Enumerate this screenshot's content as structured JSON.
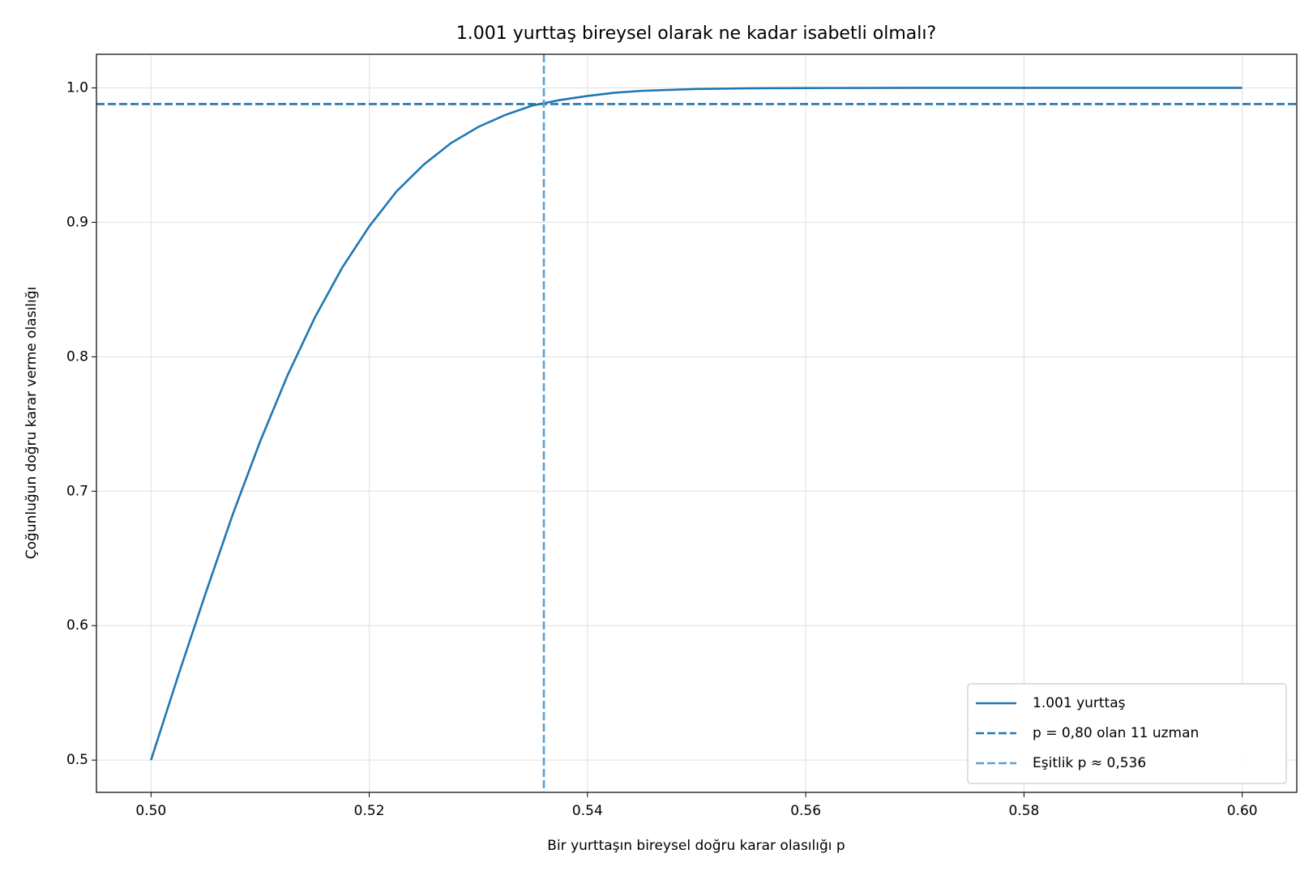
{
  "chart_data": {
    "type": "line",
    "title": "1.001 yurttaş bireysel olarak ne kadar isabetli olmalı?",
    "x_label": "Bir yurttaşın bireysel doğru karar olasılığı p",
    "y_label": "Çoğunluğun doğru karar verme olasılığı",
    "x": [
      0.5,
      0.5025,
      0.505,
      0.5075,
      0.51,
      0.5125,
      0.515,
      0.5175,
      0.52,
      0.5225,
      0.525,
      0.5275,
      0.53,
      0.5325,
      0.535,
      0.5375,
      0.54,
      0.5425,
      0.545,
      0.55,
      0.555,
      0.56,
      0.57,
      0.58,
      0.59,
      0.6
    ],
    "series": [
      {
        "name": "1.001 yurttaş",
        "color": "#1f77b4",
        "values": [
          0.5,
          0.563,
          0.624,
          0.683,
          0.737,
          0.786,
          0.829,
          0.866,
          0.897,
          0.923,
          0.943,
          0.959,
          0.971,
          0.98,
          0.987,
          0.991,
          0.994,
          0.9964,
          0.9978,
          0.9992,
          0.9997,
          0.9999,
          1.0,
          1.0,
          1.0,
          1.0
        ]
      }
    ],
    "reference_lines": [
      {
        "name": "p = 0,80 olan 11 uzman",
        "orientation": "horizontal",
        "value": 0.988,
        "color": "#1f77b4"
      },
      {
        "name": "Eşitlik p ≈ 0,536",
        "orientation": "vertical",
        "value": 0.536,
        "color": "#5b9fd3"
      }
    ],
    "xlim": [
      0.495,
      0.605
    ],
    "ylim": [
      0.476,
      1.025
    ],
    "xticks": [
      {
        "value": 0.5,
        "label": "0.50"
      },
      0.52,
      0.54,
      0.56,
      0.58,
      {
        "value": 0.6,
        "label": "0.60"
      }
    ],
    "yticks": [
      0.5,
      0.6,
      0.7,
      0.8,
      0.9,
      {
        "value": 1.0,
        "label": "1.0"
      }
    ],
    "grid": true,
    "legend_position": "lower right"
  }
}
